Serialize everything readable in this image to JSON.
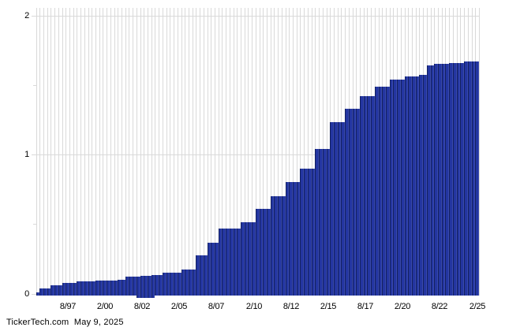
{
  "chart_data": {
    "type": "bar",
    "title": "",
    "xlabel": "",
    "ylabel": "",
    "ylim": [
      0,
      2.07
    ],
    "grid": "vertical gridline per bar; horizontal gridlines at 1 and 2",
    "legend": "none",
    "y_major_ticks": [
      {
        "label": "0",
        "value": 0
      },
      {
        "label": "1",
        "value": 1
      },
      {
        "label": "2",
        "value": 2
      }
    ],
    "y_minor_tick_values": [
      0.5,
      1.5
    ],
    "x_tick_labels": [
      "8/97",
      "2/00",
      "8/02",
      "2/05",
      "8/07",
      "2/10",
      "8/12",
      "2/15",
      "8/17",
      "2/20",
      "8/22",
      "2/25"
    ],
    "x_tick_bar_indices": [
      8,
      18,
      28,
      38,
      48,
      58,
      68,
      78,
      88,
      98,
      108,
      118
    ],
    "values": [
      0.01,
      0.035,
      0.035,
      0.035,
      0.06,
      0.06,
      0.06,
      0.075,
      0.075,
      0.075,
      0.075,
      0.09,
      0.09,
      0.09,
      0.09,
      0.09,
      0.095,
      0.095,
      0.095,
      0.095,
      0.095,
      0.095,
      0.1,
      0.1,
      0.12,
      0.12,
      0.12,
      0.12,
      0.125,
      0.125,
      0.125,
      0.135,
      0.135,
      0.135,
      0.148,
      0.148,
      0.148,
      0.148,
      0.148,
      0.17,
      0.17,
      0.17,
      0.17,
      0.275,
      0.275,
      0.275,
      0.365,
      0.365,
      0.365,
      0.465,
      0.465,
      0.465,
      0.465,
      0.465,
      0.465,
      0.515,
      0.515,
      0.515,
      0.515,
      0.61,
      0.61,
      0.61,
      0.61,
      0.7,
      0.7,
      0.7,
      0.7,
      0.8,
      0.8,
      0.8,
      0.8,
      0.9,
      0.9,
      0.9,
      0.9,
      1.04,
      1.04,
      1.04,
      1.04,
      1.23,
      1.23,
      1.23,
      1.23,
      1.33,
      1.33,
      1.33,
      1.33,
      1.42,
      1.42,
      1.42,
      1.42,
      1.49,
      1.49,
      1.49,
      1.49,
      1.54,
      1.54,
      1.54,
      1.54,
      1.56,
      1.56,
      1.56,
      1.56,
      1.57,
      1.57,
      1.64,
      1.64,
      1.65,
      1.65,
      1.65,
      1.65,
      1.66,
      1.66,
      1.66,
      1.66,
      1.67,
      1.67,
      1.67,
      1.67
    ],
    "dip_bar_indices": [
      27,
      28,
      29,
      30,
      31
    ],
    "colors": {
      "bar_fill": "#2335a0",
      "bar_edge_dark": "#13205f",
      "bar_edge_light": "#3a4bb0",
      "gridline": "#d9d9d9",
      "text": "#000000",
      "background": "#ffffff"
    }
  },
  "footer": {
    "text": "TickerTech.com  May 9, 2025"
  }
}
